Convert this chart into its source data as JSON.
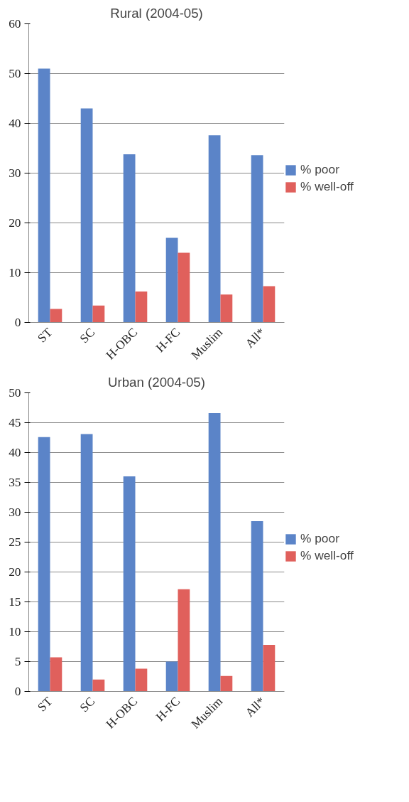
{
  "chart_data": [
    {
      "type": "bar",
      "title": "Rural (2004-05)",
      "categories": [
        "ST",
        "SC",
        "H-OBC",
        "H-FC",
        "Muslim",
        "All*"
      ],
      "series": [
        {
          "name": "% poor",
          "color": "#5b84c8",
          "values": [
            51,
            43,
            33.8,
            17,
            37.6,
            33.6
          ]
        },
        {
          "name": "% well-off",
          "color": "#e0605c",
          "values": [
            2.7,
            3.4,
            6.2,
            14,
            5.6,
            7.3
          ]
        }
      ],
      "ylim": [
        0,
        60
      ],
      "yticks": [
        0,
        10,
        20,
        30,
        40,
        50,
        60
      ],
      "grid": "y",
      "legend": "right"
    },
    {
      "type": "bar",
      "title": "Urban (2004-05)",
      "categories": [
        "ST",
        "SC",
        "H-OBC",
        "H-FC",
        "Muslim",
        "All*"
      ],
      "series": [
        {
          "name": "% poor",
          "color": "#5b84c8",
          "values": [
            42.6,
            43.1,
            36,
            5,
            46.6,
            28.5
          ]
        },
        {
          "name": "% well-off",
          "color": "#e0605c",
          "values": [
            5.7,
            2,
            3.8,
            17.1,
            2.6,
            7.8
          ]
        }
      ],
      "ylim": [
        0,
        50
      ],
      "yticks": [
        0,
        5,
        10,
        15,
        20,
        25,
        30,
        35,
        40,
        45,
        50
      ],
      "grid": "y",
      "legend": "right"
    }
  ]
}
